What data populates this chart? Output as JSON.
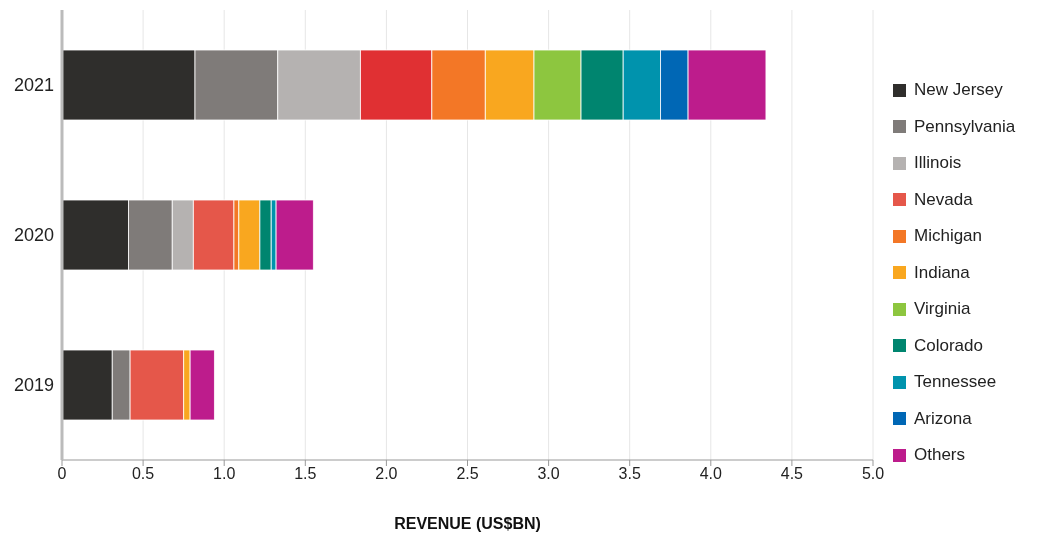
{
  "chart_data": {
    "type": "bar",
    "orientation": "horizontal",
    "stacked": true,
    "xlabel": "REVENUE (US$BN)",
    "categories": [
      "2021",
      "2020",
      "2019"
    ],
    "series": [
      {
        "name": "New Jersey",
        "color": "#2f2e2c",
        "values": [
          0.82,
          0.41,
          0.31
        ]
      },
      {
        "name": "Pennsylvania",
        "color": "#7f7b79",
        "values": [
          0.51,
          0.27,
          0.11
        ]
      },
      {
        "name": "Illinois",
        "color": "#b5b2b1",
        "values": [
          0.51,
          0.13,
          0
        ]
      },
      {
        "name": "Nevada",
        "color": "#e5574a",
        "colors": [
          "#e03033",
          "#e5574a",
          "#e5574a"
        ],
        "values": [
          0.44,
          0.25,
          0.33
        ]
      },
      {
        "name": "Michigan",
        "color": "#f37726",
        "values": [
          0.33,
          0.03,
          0
        ]
      },
      {
        "name": "Indiana",
        "color": "#f9a71f",
        "values": [
          0.3,
          0.13,
          0.04
        ]
      },
      {
        "name": "Virginia",
        "color": "#8dc63f",
        "values": [
          0.29,
          0,
          0
        ]
      },
      {
        "name": "Colorado",
        "color": "#00856f",
        "values": [
          0.26,
          0.07,
          0
        ]
      },
      {
        "name": "Tennessee",
        "color": "#0093ad",
        "values": [
          0.23,
          0.03,
          0
        ]
      },
      {
        "name": "Arizona",
        "color": "#0067b5",
        "values": [
          0.17,
          0,
          0
        ]
      },
      {
        "name": "Others",
        "color": "#bd1c8c",
        "values": [
          0.48,
          0.23,
          0.15
        ]
      }
    ],
    "xlim": [
      0,
      5
    ],
    "xticks": [
      0,
      0.5,
      {
        "value": 1,
        "label": "1.0"
      },
      1.5,
      {
        "value": 2,
        "label": "2.0"
      },
      2.5,
      {
        "value": 3,
        "label": "3.0"
      },
      3.5,
      {
        "value": 4,
        "label": "4.0"
      },
      4.5,
      {
        "value": 5,
        "label": "5.0"
      }
    ],
    "grid": "x",
    "legend": "right"
  }
}
